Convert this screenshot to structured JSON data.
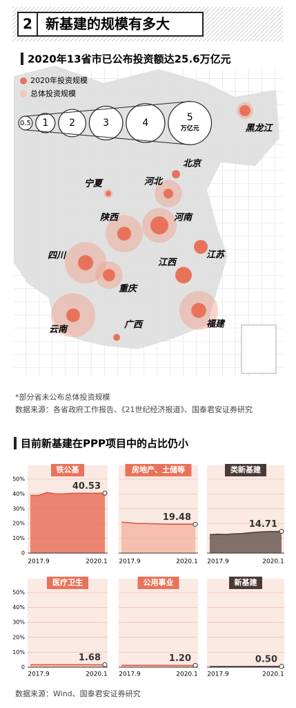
{
  "header": {
    "number": "2",
    "title": "新基建的规模有多大"
  },
  "map": {
    "title": "2020年13省市已公布投资额达25.6万亿元",
    "legend": [
      "2020年投资规模",
      "总体投资规模"
    ],
    "scale": {
      "values": [
        0.5,
        1,
        2,
        3,
        4,
        5
      ],
      "unit": "万亿元"
    },
    "provinces": [
      {
        "name": "黑龙江",
        "invest_2020": 0.33,
        "total": 0.73
      },
      {
        "name": "北京",
        "invest_2020": 0.18,
        "total": null
      },
      {
        "name": "河北",
        "invest_2020": 0.25,
        "total": 2.0
      },
      {
        "name": "宁夏",
        "invest_2020": 0.08,
        "total": 0.22
      },
      {
        "name": "陕西",
        "invest_2020": 0.51,
        "total": 3.7
      },
      {
        "name": "河南",
        "invest_2020": 0.86,
        "total": 3.2
      },
      {
        "name": "江苏",
        "invest_2020": 0.51,
        "total": null
      },
      {
        "name": "四川",
        "invest_2020": 0.62,
        "total": 4.6
      },
      {
        "name": "重庆",
        "invest_2020": 0.41,
        "total": 2.0
      },
      {
        "name": "江西",
        "invest_2020": 0.73,
        "total": null
      },
      {
        "name": "云南",
        "invest_2020": 0.5,
        "total": 5.2
      },
      {
        "name": "福建",
        "invest_2020": 0.6,
        "total": 4.0
      },
      {
        "name": "广西",
        "invest_2020": 0.13,
        "total": null
      }
    ],
    "note": "*部分省未公布总体投资规模",
    "source": "数据来源：各省政府工作报告、《21世纪经济报道》、国泰君安证券研究"
  },
  "section_title": "目前新基建在PPP项目中的占比仍小",
  "chart_data": [
    {
      "type": "area",
      "title": "铁公基",
      "color": "#e8735a",
      "tag_color": "#e8735a",
      "categories": [
        "2017.9",
        null,
        null,
        null,
        null,
        null,
        null,
        null,
        null,
        "2020.1"
      ],
      "values": [
        39,
        39,
        41,
        40,
        40,
        40.5,
        40.5,
        40.5,
        40.5,
        40.53
      ],
      "ylim": [
        0,
        50
      ],
      "yticks": [
        0,
        {
          "value": 10,
          "label": "10%"
        },
        {
          "value": 20,
          "label": "20%"
        },
        {
          "value": 30,
          "label": "30%"
        },
        {
          "value": 40,
          "label": "40%"
        },
        {
          "value": 50,
          "label": "50%"
        }
      ],
      "grid": true
    },
    {
      "type": "area",
      "title": "房地产、土储等",
      "color": "#f3b6a4",
      "tag_color": "#e8735a",
      "categories": [
        "2017.9",
        null,
        null,
        null,
        null,
        null,
        null,
        null,
        null,
        "2020.1"
      ],
      "values": [
        21,
        20.5,
        20,
        20,
        19.8,
        19.7,
        19.5,
        19.5,
        19.5,
        19.48
      ],
      "ylim": [
        0,
        50
      ],
      "yticks": [
        0,
        10,
        20,
        30,
        40,
        50
      ],
      "grid": true
    },
    {
      "type": "area",
      "title": "类新基建",
      "color": "#6b5a55",
      "tag_color": "#4a3a36",
      "categories": [
        "2017.9",
        null,
        null,
        null,
        null,
        null,
        null,
        null,
        null,
        "2020.1"
      ],
      "values": [
        12.5,
        12.8,
        12.6,
        13,
        13.2,
        13.8,
        14.2,
        14.5,
        14.6,
        14.71
      ],
      "ylim": [
        0,
        50
      ],
      "yticks": [
        0,
        10,
        20,
        30,
        40,
        50
      ],
      "grid": true
    },
    {
      "type": "area",
      "title": "医疗卫生",
      "color": "#f3b6a4",
      "tag_color": "#e8735a",
      "categories": [
        "2017.9",
        null,
        null,
        null,
        null,
        null,
        null,
        null,
        null,
        "2020.1"
      ],
      "values": [
        1.7,
        1.7,
        1.7,
        1.7,
        1.7,
        1.7,
        1.7,
        1.7,
        1.7,
        1.68
      ],
      "ylim": [
        0,
        50
      ],
      "yticks": [
        0,
        {
          "value": 10,
          "label": "10%"
        },
        {
          "value": 20,
          "label": "20%"
        },
        {
          "value": 30,
          "label": "30%"
        },
        {
          "value": 40,
          "label": "40%"
        },
        {
          "value": 50,
          "label": "50%"
        }
      ],
      "grid": true
    },
    {
      "type": "area",
      "title": "公用事业",
      "color": "#f3b6a4",
      "tag_color": "#e8735a",
      "categories": [
        "2017.9",
        null,
        null,
        null,
        null,
        null,
        null,
        null,
        null,
        "2020.1"
      ],
      "values": [
        1.3,
        1.3,
        1.3,
        1.3,
        1.25,
        1.25,
        1.2,
        1.2,
        1.2,
        1.2
      ],
      "value_labels": [
        null,
        null,
        null,
        null,
        null,
        null,
        null,
        null,
        null,
        "1.20"
      ],
      "ylim": [
        0,
        50
      ],
      "yticks": [
        0,
        10,
        20,
        30,
        40,
        50
      ],
      "grid": true
    },
    {
      "type": "area",
      "title": "新基建",
      "color": "#6b5a55",
      "tag_color": "#4a3a36",
      "categories": [
        "2017.9",
        null,
        null,
        null,
        null,
        null,
        null,
        null,
        null,
        "2020.1"
      ],
      "values": [
        0.45,
        0.45,
        0.45,
        0.45,
        0.45,
        0.5,
        0.5,
        0.5,
        0.5,
        0.5
      ],
      "value_labels": [
        null,
        null,
        null,
        null,
        null,
        null,
        null,
        null,
        null,
        "0.50"
      ],
      "ylim": [
        0,
        50
      ],
      "yticks": [
        0,
        10,
        20,
        30,
        40,
        50
      ],
      "grid": true
    }
  ],
  "source": "数据来源：Wind、国泰君安证券研究"
}
